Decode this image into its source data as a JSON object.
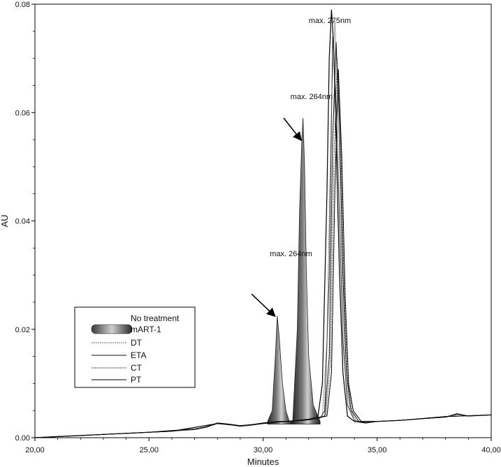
{
  "chart_data": {
    "type": "line",
    "title": "",
    "xlabel": "Minutes",
    "ylabel": "AU",
    "xlim": [
      20,
      40
    ],
    "ylim": [
      0,
      0.08
    ],
    "x_ticks": [
      20,
      25,
      30,
      35,
      40
    ],
    "x_tick_labels": [
      "20,00",
      "25,00",
      "30,00",
      "35,00",
      "40,00"
    ],
    "y_ticks": [
      0,
      0.02,
      0.04,
      0.06,
      0.08
    ],
    "y_tick_labels": [
      "0.00",
      "0.02",
      "0.04",
      "0.06",
      "0.08"
    ],
    "grid": false,
    "legend_position": "bottom-left",
    "legend": [
      "No treatment",
      "mART-1",
      "DT",
      "ETA",
      "CT",
      "PT"
    ],
    "annotations": [
      {
        "text": "max. 264nm",
        "x": 30.3,
        "y": 0.0335
      },
      {
        "text": "max. 264nm",
        "x": 31.2,
        "y": 0.0625
      },
      {
        "text": "max. 275nm",
        "x": 32.0,
        "y": 0.0765
      }
    ],
    "arrows": [
      {
        "from": [
          29.5,
          0.0265
        ],
        "to": [
          30.5,
          0.0225
        ]
      },
      {
        "from": [
          30.9,
          0.059
        ],
        "to": [
          31.65,
          0.055
        ]
      }
    ],
    "filled_peaks": [
      {
        "x": [
          30.2,
          30.4,
          30.55,
          30.62,
          30.7,
          30.85,
          31.0,
          31.15,
          31.3
        ],
        "y": [
          0.003,
          0.005,
          0.016,
          0.0225,
          0.019,
          0.01,
          0.005,
          0.003,
          0.003
        ]
      },
      {
        "x": [
          31.3,
          31.5,
          31.6,
          31.7,
          31.75,
          31.82,
          31.9,
          32.0,
          32.2,
          32.5
        ],
        "y": [
          0.003,
          0.02,
          0.042,
          0.055,
          0.059,
          0.05,
          0.03,
          0.015,
          0.006,
          0.003
        ]
      }
    ],
    "series": [
      {
        "name": "No treatment",
        "x": [
          20,
          21,
          22,
          23,
          24,
          25,
          26,
          27,
          27.5,
          28,
          28.5,
          29,
          29.5,
          30,
          30.5,
          31,
          31.5,
          32,
          32.4,
          32.6,
          32.8,
          32.9,
          33.0,
          33.1,
          33.2,
          33.35,
          33.5,
          33.7,
          34.0,
          34.5,
          35,
          36,
          37,
          38,
          38.5,
          39,
          40
        ],
        "y": [
          0.0,
          0.0002,
          0.0004,
          0.0006,
          0.0008,
          0.001,
          0.0013,
          0.0016,
          0.002,
          0.0027,
          0.0025,
          0.0022,
          0.0024,
          0.0027,
          0.003,
          0.003,
          0.0032,
          0.0034,
          0.0038,
          0.01,
          0.045,
          0.07,
          0.079,
          0.072,
          0.055,
          0.03,
          0.012,
          0.004,
          0.003,
          0.0027,
          0.003,
          0.0032,
          0.0035,
          0.0038,
          0.0044,
          0.004,
          0.0042
        ]
      },
      {
        "name": "mART-1",
        "x": [
          20,
          21,
          22,
          23,
          24,
          25,
          26,
          27,
          27.5,
          28,
          28.5,
          29,
          29.5,
          30,
          30.5,
          31,
          31.5,
          32,
          32.5,
          32.7,
          32.9,
          33.05,
          33.2,
          33.35,
          33.5,
          33.7,
          34.0,
          34.5,
          35,
          36,
          37,
          38,
          38.5,
          39,
          40
        ],
        "y": [
          0.0,
          0.0002,
          0.0004,
          0.0006,
          0.0008,
          0.001,
          0.0012,
          0.0015,
          0.0019,
          0.0026,
          0.0024,
          0.0021,
          0.0023,
          0.0026,
          0.003,
          0.003,
          0.0031,
          0.0033,
          0.0036,
          0.005,
          0.03,
          0.074,
          0.062,
          0.04,
          0.018,
          0.006,
          0.0032,
          0.0028,
          0.003,
          0.0032,
          0.0035,
          0.0038,
          0.0043,
          0.004,
          0.0042
        ]
      },
      {
        "name": "DT",
        "x": [
          20,
          22,
          24,
          26,
          28,
          29,
          30,
          31,
          32,
          32.6,
          32.8,
          33.0,
          33.15,
          33.3,
          33.45,
          33.6,
          33.8,
          34.1,
          35,
          36,
          38,
          40
        ],
        "y": [
          0.0,
          0.0004,
          0.0008,
          0.0012,
          0.0026,
          0.0022,
          0.0026,
          0.003,
          0.0033,
          0.004,
          0.018,
          0.062,
          0.077,
          0.06,
          0.032,
          0.012,
          0.005,
          0.003,
          0.003,
          0.0032,
          0.0039,
          0.0042
        ]
      },
      {
        "name": "ETA",
        "x": [
          20,
          22,
          24,
          26,
          28,
          29,
          30,
          31,
          32,
          32.7,
          32.9,
          33.05,
          33.2,
          33.35,
          33.5,
          33.65,
          33.85,
          34.2,
          35,
          36,
          38,
          40
        ],
        "y": [
          0.0,
          0.0004,
          0.0008,
          0.0012,
          0.0026,
          0.0022,
          0.0026,
          0.003,
          0.0033,
          0.004,
          0.015,
          0.055,
          0.073,
          0.058,
          0.03,
          0.012,
          0.005,
          0.003,
          0.003,
          0.0032,
          0.0039,
          0.0042
        ]
      },
      {
        "name": "CT",
        "x": [
          20,
          22,
          24,
          26,
          28,
          29,
          30,
          31,
          32,
          32.75,
          32.95,
          33.1,
          33.25,
          33.4,
          33.55,
          33.7,
          33.9,
          34.2,
          35,
          36,
          38,
          40
        ],
        "y": [
          0.0,
          0.0004,
          0.0008,
          0.0012,
          0.0026,
          0.0022,
          0.0026,
          0.003,
          0.0033,
          0.004,
          0.014,
          0.05,
          0.07,
          0.055,
          0.028,
          0.011,
          0.005,
          0.003,
          0.003,
          0.0032,
          0.0039,
          0.0042
        ]
      },
      {
        "name": "PT",
        "x": [
          20,
          22,
          24,
          26,
          28,
          29,
          30,
          31,
          32,
          32.8,
          33.0,
          33.15,
          33.3,
          33.45,
          33.6,
          33.75,
          33.95,
          34.3,
          35,
          36,
          38,
          40
        ],
        "y": [
          0.0,
          0.0004,
          0.0008,
          0.0012,
          0.0026,
          0.0022,
          0.0026,
          0.003,
          0.0033,
          0.004,
          0.012,
          0.046,
          0.068,
          0.052,
          0.026,
          0.01,
          0.005,
          0.003,
          0.003,
          0.0032,
          0.0039,
          0.0042
        ]
      }
    ]
  }
}
